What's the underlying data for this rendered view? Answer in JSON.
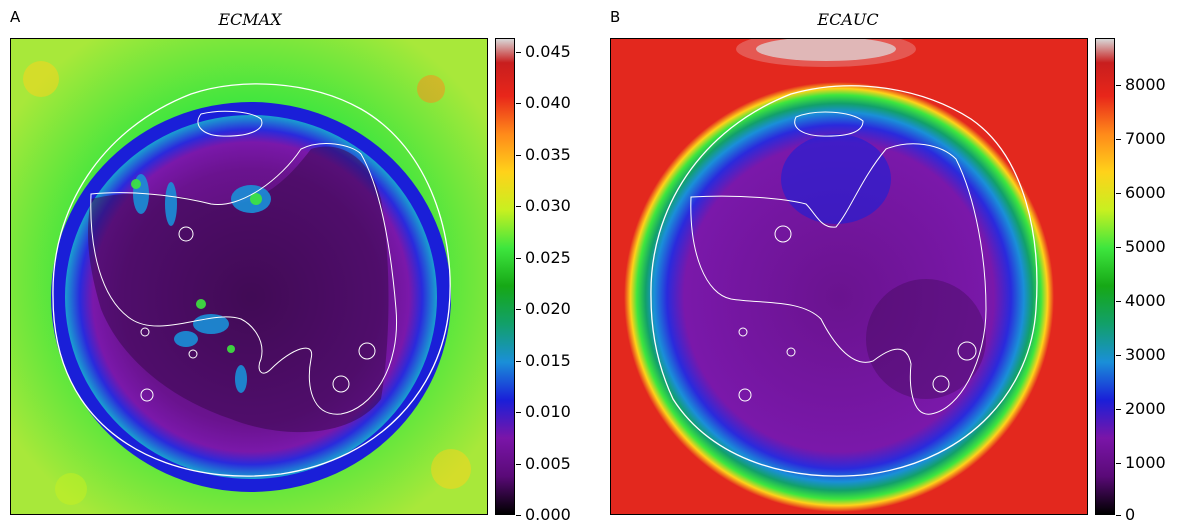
{
  "panels": [
    {
      "letter": "A",
      "title": "ECMAX",
      "colorbar_ticks": [
        "0.045",
        "0.040",
        "0.035",
        "0.030",
        "0.025",
        "0.020",
        "0.015",
        "0.010",
        "0.005",
        "0.000"
      ],
      "background_color": "#7ddf3a"
    },
    {
      "letter": "B",
      "title": "ECAUC",
      "colorbar_ticks": [
        "8000",
        "7000",
        "6000",
        "5000",
        "4000",
        "3000",
        "2000",
        "1000",
        "0"
      ],
      "background_color": "#e3281e"
    }
  ],
  "colormap": [
    "#000000",
    "#5a0a78",
    "#7a15a8",
    "#1a1fd8",
    "#1a8fd8",
    "#12a06a",
    "#16a816",
    "#3ee63e",
    "#c8f020",
    "#ffd21a",
    "#ff8a1a",
    "#e8261a",
    "#c81e1e",
    "#d8d8d8"
  ],
  "contour_color": "#ffffff"
}
